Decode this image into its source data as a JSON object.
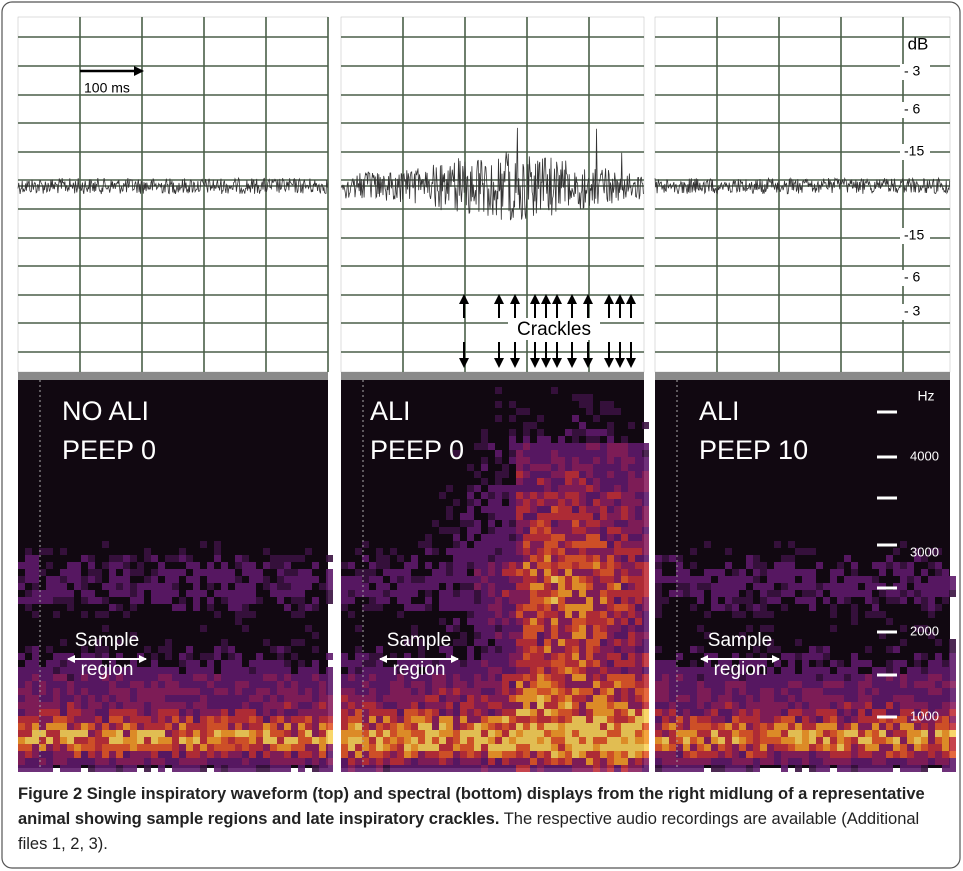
{
  "waveform_scale": {
    "unit": "dB",
    "labels": [
      "- 3",
      "- 6",
      "-15",
      "-15",
      "- 6",
      "- 3"
    ]
  },
  "time_scale": "100 ms",
  "crackles_label": "Crackles",
  "panels": [
    {
      "lines": [
        "NO ALI",
        "PEEP 0"
      ],
      "sample_label": [
        "Sample",
        "region"
      ]
    },
    {
      "lines": [
        "ALI",
        "PEEP 0"
      ],
      "sample_label": [
        "Sample",
        "region"
      ]
    },
    {
      "lines": [
        "ALI",
        "PEEP 10"
      ],
      "sample_label": [
        "Sample",
        "region"
      ]
    }
  ],
  "frequency_scale": {
    "unit": "Hz",
    "labels": [
      "4000",
      "3000",
      "2000",
      "1000"
    ]
  },
  "caption": {
    "label": "Figure 2",
    "title": "Single inspiratory waveform (top) and spectral (bottom) displays from the right midlung of a representative animal showing sample regions and late inspiratory crackles.",
    "text": "The respective audio recordings are available (Additional files 1, 2, 3)."
  }
}
